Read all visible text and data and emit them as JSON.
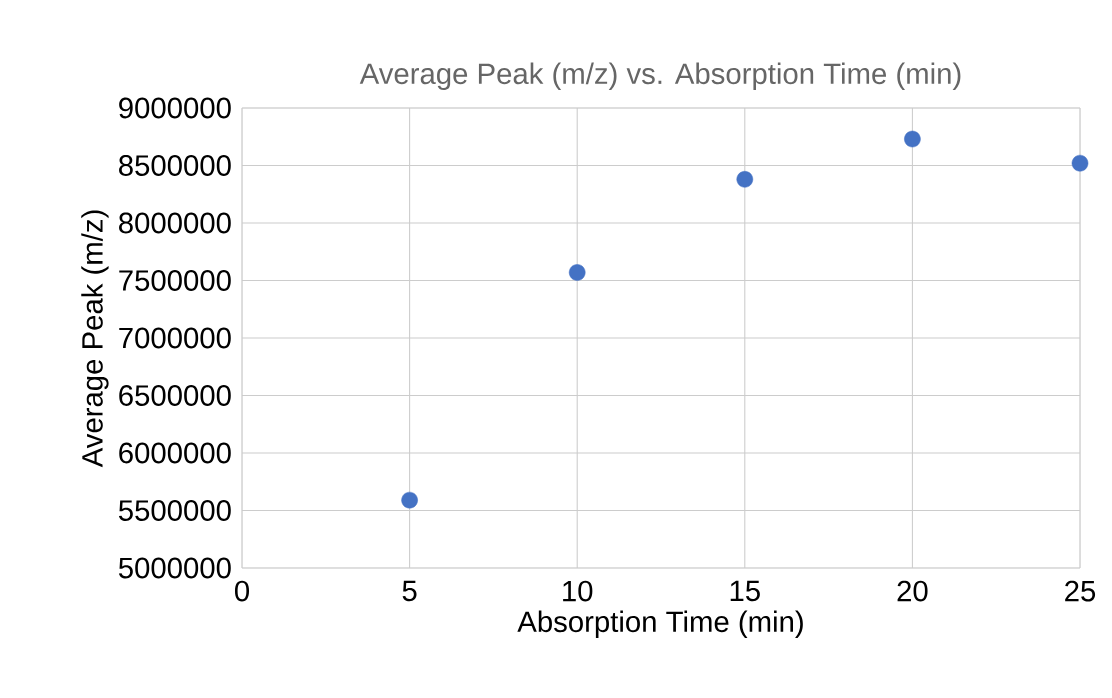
{
  "chart_data": {
    "type": "scatter",
    "title": "Average Peak (m/z) vs. Absorption Time (min)",
    "xlabel": "Absorption Time (min)",
    "ylabel": "Average Peak (m/z)",
    "x": [
      5,
      10,
      15,
      20,
      25
    ],
    "series": [
      {
        "color": "#4472c4",
        "values": [
          5590000,
          7570000,
          8380000,
          8730000,
          8520000
        ]
      }
    ],
    "xlim": [
      0,
      25
    ],
    "ylim": [
      5000000,
      9000000
    ],
    "xticks": [
      0,
      5,
      10,
      15,
      20,
      25
    ],
    "yticks": [
      5000000,
      5500000,
      6000000,
      6500000,
      7000000,
      7500000,
      8000000,
      8500000,
      9000000
    ],
    "grid": true,
    "marker": "circle"
  }
}
